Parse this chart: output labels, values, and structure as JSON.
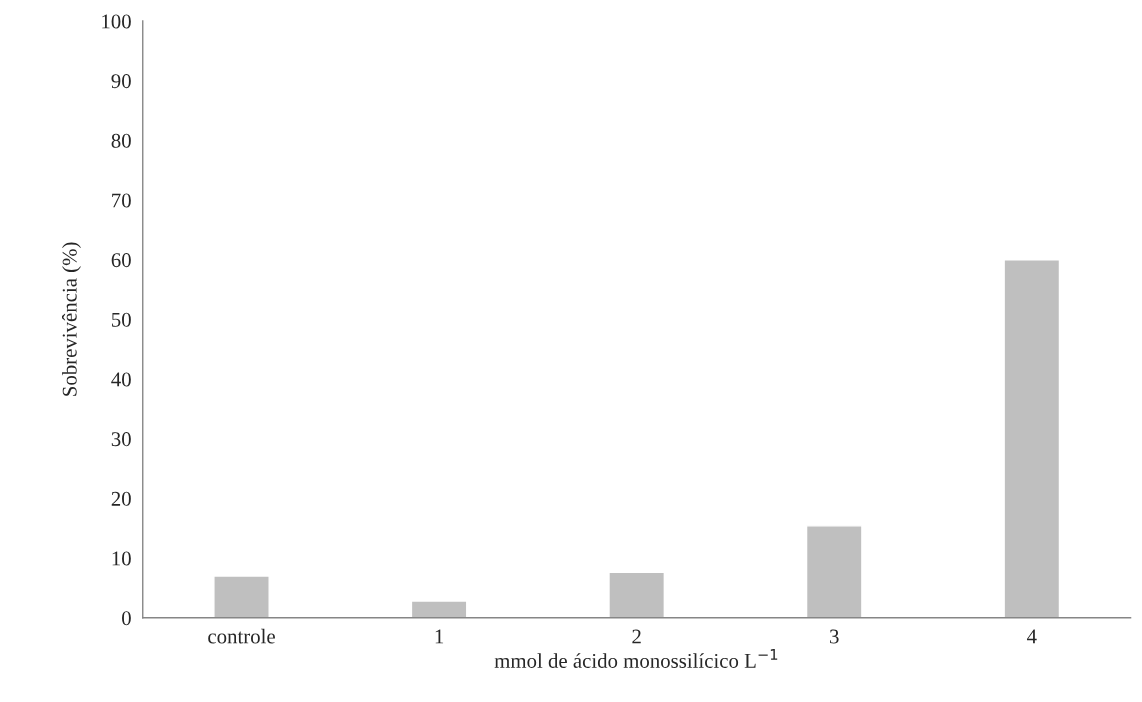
{
  "chart_data": {
    "type": "bar",
    "categories": [
      "controle",
      "1",
      "2",
      "3",
      "4"
    ],
    "values": [
      7.0,
      2.8,
      7.6,
      15.4,
      60.0
    ],
    "color": "#bfbfbf",
    "xlabel": "mmol de ácido monossilícico L$^{−1}$",
    "ylabel": "Sobrevivência (%)",
    "ylim": [
      0,
      100
    ],
    "yticks": [
      0,
      10,
      20,
      30,
      40,
      50,
      60,
      70,
      80,
      90,
      100
    ],
    "grid": false,
    "legend": false
  }
}
